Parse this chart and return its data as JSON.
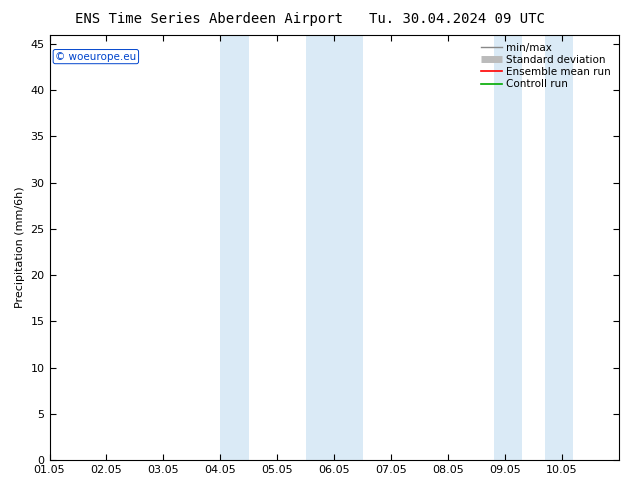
{
  "title_left": "ENS Time Series Aberdeen Airport",
  "title_right": "Tu. 30.04.2024 09 UTC",
  "ylabel": "Precipitation (mm/6h)",
  "watermark": "© woeurope.eu",
  "xlim": [
    0,
    10
  ],
  "ylim": [
    0,
    46
  ],
  "yticks": [
    0,
    5,
    10,
    15,
    20,
    25,
    30,
    35,
    40,
    45
  ],
  "xtick_labels": [
    "01.05",
    "02.05",
    "03.05",
    "04.05",
    "05.05",
    "06.05",
    "07.05",
    "08.05",
    "09.05",
    "10.05"
  ],
  "xtick_positions": [
    0,
    1,
    2,
    3,
    4,
    5,
    6,
    7,
    8,
    9
  ],
  "shaded_regions": [
    [
      3.0,
      3.5
    ],
    [
      4.5,
      5.5
    ],
    [
      7.8,
      8.3
    ],
    [
      8.7,
      9.2
    ]
  ],
  "shade_color": "#daeaf6",
  "background_color": "#ffffff",
  "legend_labels": [
    "min/max",
    "Standard deviation",
    "Ensemble mean run",
    "Controll run"
  ],
  "legend_colors": [
    "#888888",
    "#bbbbbb",
    "#ff0000",
    "#00aa00"
  ],
  "title_fontsize": 10,
  "axis_label_fontsize": 8,
  "tick_fontsize": 8
}
